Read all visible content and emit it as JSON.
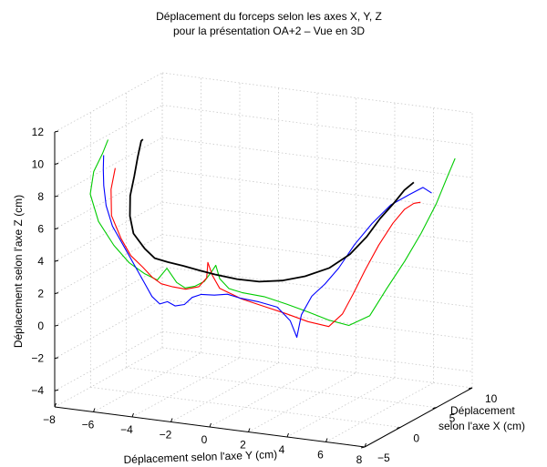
{
  "chart_data": {
    "type": "line",
    "view": "3d",
    "title": "Déplacement du forceps selon les axes X, Y, Z",
    "subtitle": "pour la présentation OA+2 – Vue en 3D",
    "xlabel": "Déplacement selon l'axe Y (cm)",
    "ylabel": "Déplacement selon l'axe X (cm)",
    "ylabel_lines": [
      "Déplacement",
      "selon l'axe X (cm)"
    ],
    "zlabel": "Déplacement selon l'axe Z (cm)",
    "xlim": [
      -8,
      8
    ],
    "ylim": [
      -5,
      10
    ],
    "zlim": [
      -5,
      12
    ],
    "x_ticks": [
      -8,
      -6,
      -4,
      -2,
      0,
      2,
      4,
      6,
      8
    ],
    "y_ticks": [
      -5,
      0,
      5,
      10
    ],
    "z_ticks": [
      -4,
      -2,
      0,
      2,
      4,
      6,
      8,
      10,
      12
    ],
    "grid": true,
    "legend": "none",
    "series": [
      {
        "color": "#00cc00",
        "points": [
          [
            -5.8,
            -3.5,
            11.5
          ],
          [
            -6.2,
            -3.2,
            10.5
          ],
          [
            -6.8,
            -2.8,
            9.2
          ],
          [
            -7.2,
            -2.2,
            7.6
          ],
          [
            -7.0,
            -1.6,
            5.8
          ],
          [
            -6.5,
            -0.8,
            4.2
          ],
          [
            -6.0,
            0.0,
            3.0
          ],
          [
            -5.5,
            0.8,
            2.2
          ],
          [
            -5.0,
            1.2,
            1.8
          ],
          [
            -4.5,
            1.2,
            2.6
          ],
          [
            -4.0,
            1.2,
            1.8
          ],
          [
            -3.6,
            1.3,
            1.5
          ],
          [
            -3.2,
            1.6,
            1.6
          ],
          [
            -2.8,
            1.8,
            1.9
          ],
          [
            -2.4,
            1.8,
            2.6
          ],
          [
            -2.2,
            1.8,
            3.0
          ],
          [
            -2.0,
            1.8,
            2.2
          ],
          [
            -1.6,
            2.0,
            1.6
          ],
          [
            -1.0,
            2.2,
            1.4
          ],
          [
            0.0,
            2.6,
            1.2
          ],
          [
            1.0,
            3.0,
            0.8
          ],
          [
            2.0,
            3.3,
            0.4
          ],
          [
            3.0,
            3.5,
            0.0
          ],
          [
            4.0,
            3.6,
            -0.2
          ],
          [
            5.0,
            3.8,
            0.5
          ],
          [
            5.5,
            4.8,
            2.0
          ],
          [
            6.0,
            6.0,
            3.5
          ],
          [
            6.4,
            7.2,
            5.0
          ],
          [
            6.8,
            8.2,
            6.6
          ],
          [
            7.1,
            9.0,
            8.2
          ],
          [
            7.3,
            9.5,
            9.2
          ]
        ]
      },
      {
        "color": "#ff0000",
        "points": [
          [
            -5.8,
            -2.5,
            9.5
          ],
          [
            -6.2,
            -2.0,
            8.0
          ],
          [
            -6.4,
            -1.4,
            6.2
          ],
          [
            -6.2,
            -0.6,
            4.6
          ],
          [
            -6.0,
            0.2,
            3.4
          ],
          [
            -5.6,
            0.8,
            2.6
          ],
          [
            -5.2,
            1.0,
            2.0
          ],
          [
            -4.8,
            1.2,
            1.6
          ],
          [
            -4.2,
            1.2,
            1.5
          ],
          [
            -3.6,
            1.4,
            1.4
          ],
          [
            -3.0,
            1.6,
            1.6
          ],
          [
            -2.6,
            1.6,
            2.2
          ],
          [
            -2.5,
            1.5,
            3.2
          ],
          [
            -2.3,
            1.6,
            2.4
          ],
          [
            -2.0,
            1.8,
            1.6
          ],
          [
            -1.0,
            2.2,
            1.0
          ],
          [
            0.0,
            2.6,
            0.6
          ],
          [
            1.0,
            3.0,
            0.2
          ],
          [
            2.0,
            3.3,
            -0.2
          ],
          [
            3.0,
            3.5,
            -0.4
          ],
          [
            3.6,
            3.8,
            0.4
          ],
          [
            4.0,
            4.2,
            1.6
          ],
          [
            4.4,
            4.8,
            3.0
          ],
          [
            4.8,
            5.6,
            4.4
          ],
          [
            5.2,
            6.5,
            5.6
          ],
          [
            5.5,
            7.3,
            6.3
          ],
          [
            5.8,
            7.8,
            6.6
          ],
          [
            6.0,
            8.2,
            6.6
          ]
        ]
      },
      {
        "color": "#0000ff",
        "points": [
          [
            -6.4,
            -2.5,
            10.2
          ],
          [
            -6.6,
            -2.0,
            9.2
          ],
          [
            -6.8,
            -1.4,
            8.0
          ],
          [
            -6.9,
            -0.8,
            6.6
          ],
          [
            -6.8,
            -0.2,
            5.2
          ],
          [
            -6.4,
            0.4,
            3.8
          ],
          [
            -6.0,
            0.8,
            2.6
          ],
          [
            -5.6,
            1.0,
            1.6
          ],
          [
            -5.2,
            1.0,
            0.8
          ],
          [
            -4.8,
            1.0,
            0.4
          ],
          [
            -4.4,
            1.0,
            0.6
          ],
          [
            -4.0,
            1.0,
            0.4
          ],
          [
            -3.6,
            1.2,
            0.5
          ],
          [
            -3.2,
            1.2,
            1.0
          ],
          [
            -2.8,
            1.4,
            1.2
          ],
          [
            -2.2,
            1.6,
            1.2
          ],
          [
            -1.6,
            1.8,
            1.3
          ],
          [
            -1.0,
            2.0,
            1.1
          ],
          [
            -0.2,
            2.4,
            0.9
          ],
          [
            0.6,
            2.8,
            0.6
          ],
          [
            1.2,
            3.0,
            -0.2
          ],
          [
            1.5,
            3.1,
            -1.2
          ],
          [
            1.7,
            3.2,
            0.2
          ],
          [
            2.2,
            3.3,
            1.4
          ],
          [
            2.8,
            3.5,
            2.2
          ],
          [
            3.4,
            3.8,
            3.2
          ],
          [
            4.0,
            4.4,
            4.6
          ],
          [
            4.6,
            5.2,
            5.8
          ],
          [
            5.2,
            6.2,
            6.8
          ],
          [
            5.8,
            7.2,
            7.3
          ],
          [
            6.2,
            8.0,
            7.6
          ],
          [
            6.5,
            8.4,
            7.2
          ]
        ]
      },
      {
        "color": "#000000",
        "points": [
          [
            -4.0,
            -3.5,
            11.8
          ],
          [
            -4.2,
            -3.2,
            11.6
          ],
          [
            -4.6,
            -2.6,
            10.4
          ],
          [
            -5.0,
            -2.0,
            9.0
          ],
          [
            -5.4,
            -1.5,
            7.6
          ],
          [
            -5.6,
            -1.0,
            6.2
          ],
          [
            -5.6,
            -0.5,
            5.0
          ],
          [
            -5.2,
            0.0,
            4.0
          ],
          [
            -4.8,
            0.3,
            3.4
          ],
          [
            -4.2,
            0.5,
            3.2
          ],
          [
            -3.5,
            0.8,
            3.0
          ],
          [
            -2.8,
            1.0,
            2.8
          ],
          [
            -2.0,
            1.2,
            2.6
          ],
          [
            -1.0,
            1.5,
            2.4
          ],
          [
            0.0,
            1.9,
            2.3
          ],
          [
            1.0,
            2.4,
            2.4
          ],
          [
            2.0,
            2.9,
            2.7
          ],
          [
            3.0,
            3.6,
            3.2
          ],
          [
            3.8,
            4.3,
            4.0
          ],
          [
            4.4,
            5.0,
            5.0
          ],
          [
            4.8,
            5.8,
            6.0
          ],
          [
            5.2,
            6.6,
            6.8
          ],
          [
            5.5,
            7.3,
            7.5
          ],
          [
            5.8,
            7.8,
            7.9
          ]
        ]
      }
    ]
  }
}
